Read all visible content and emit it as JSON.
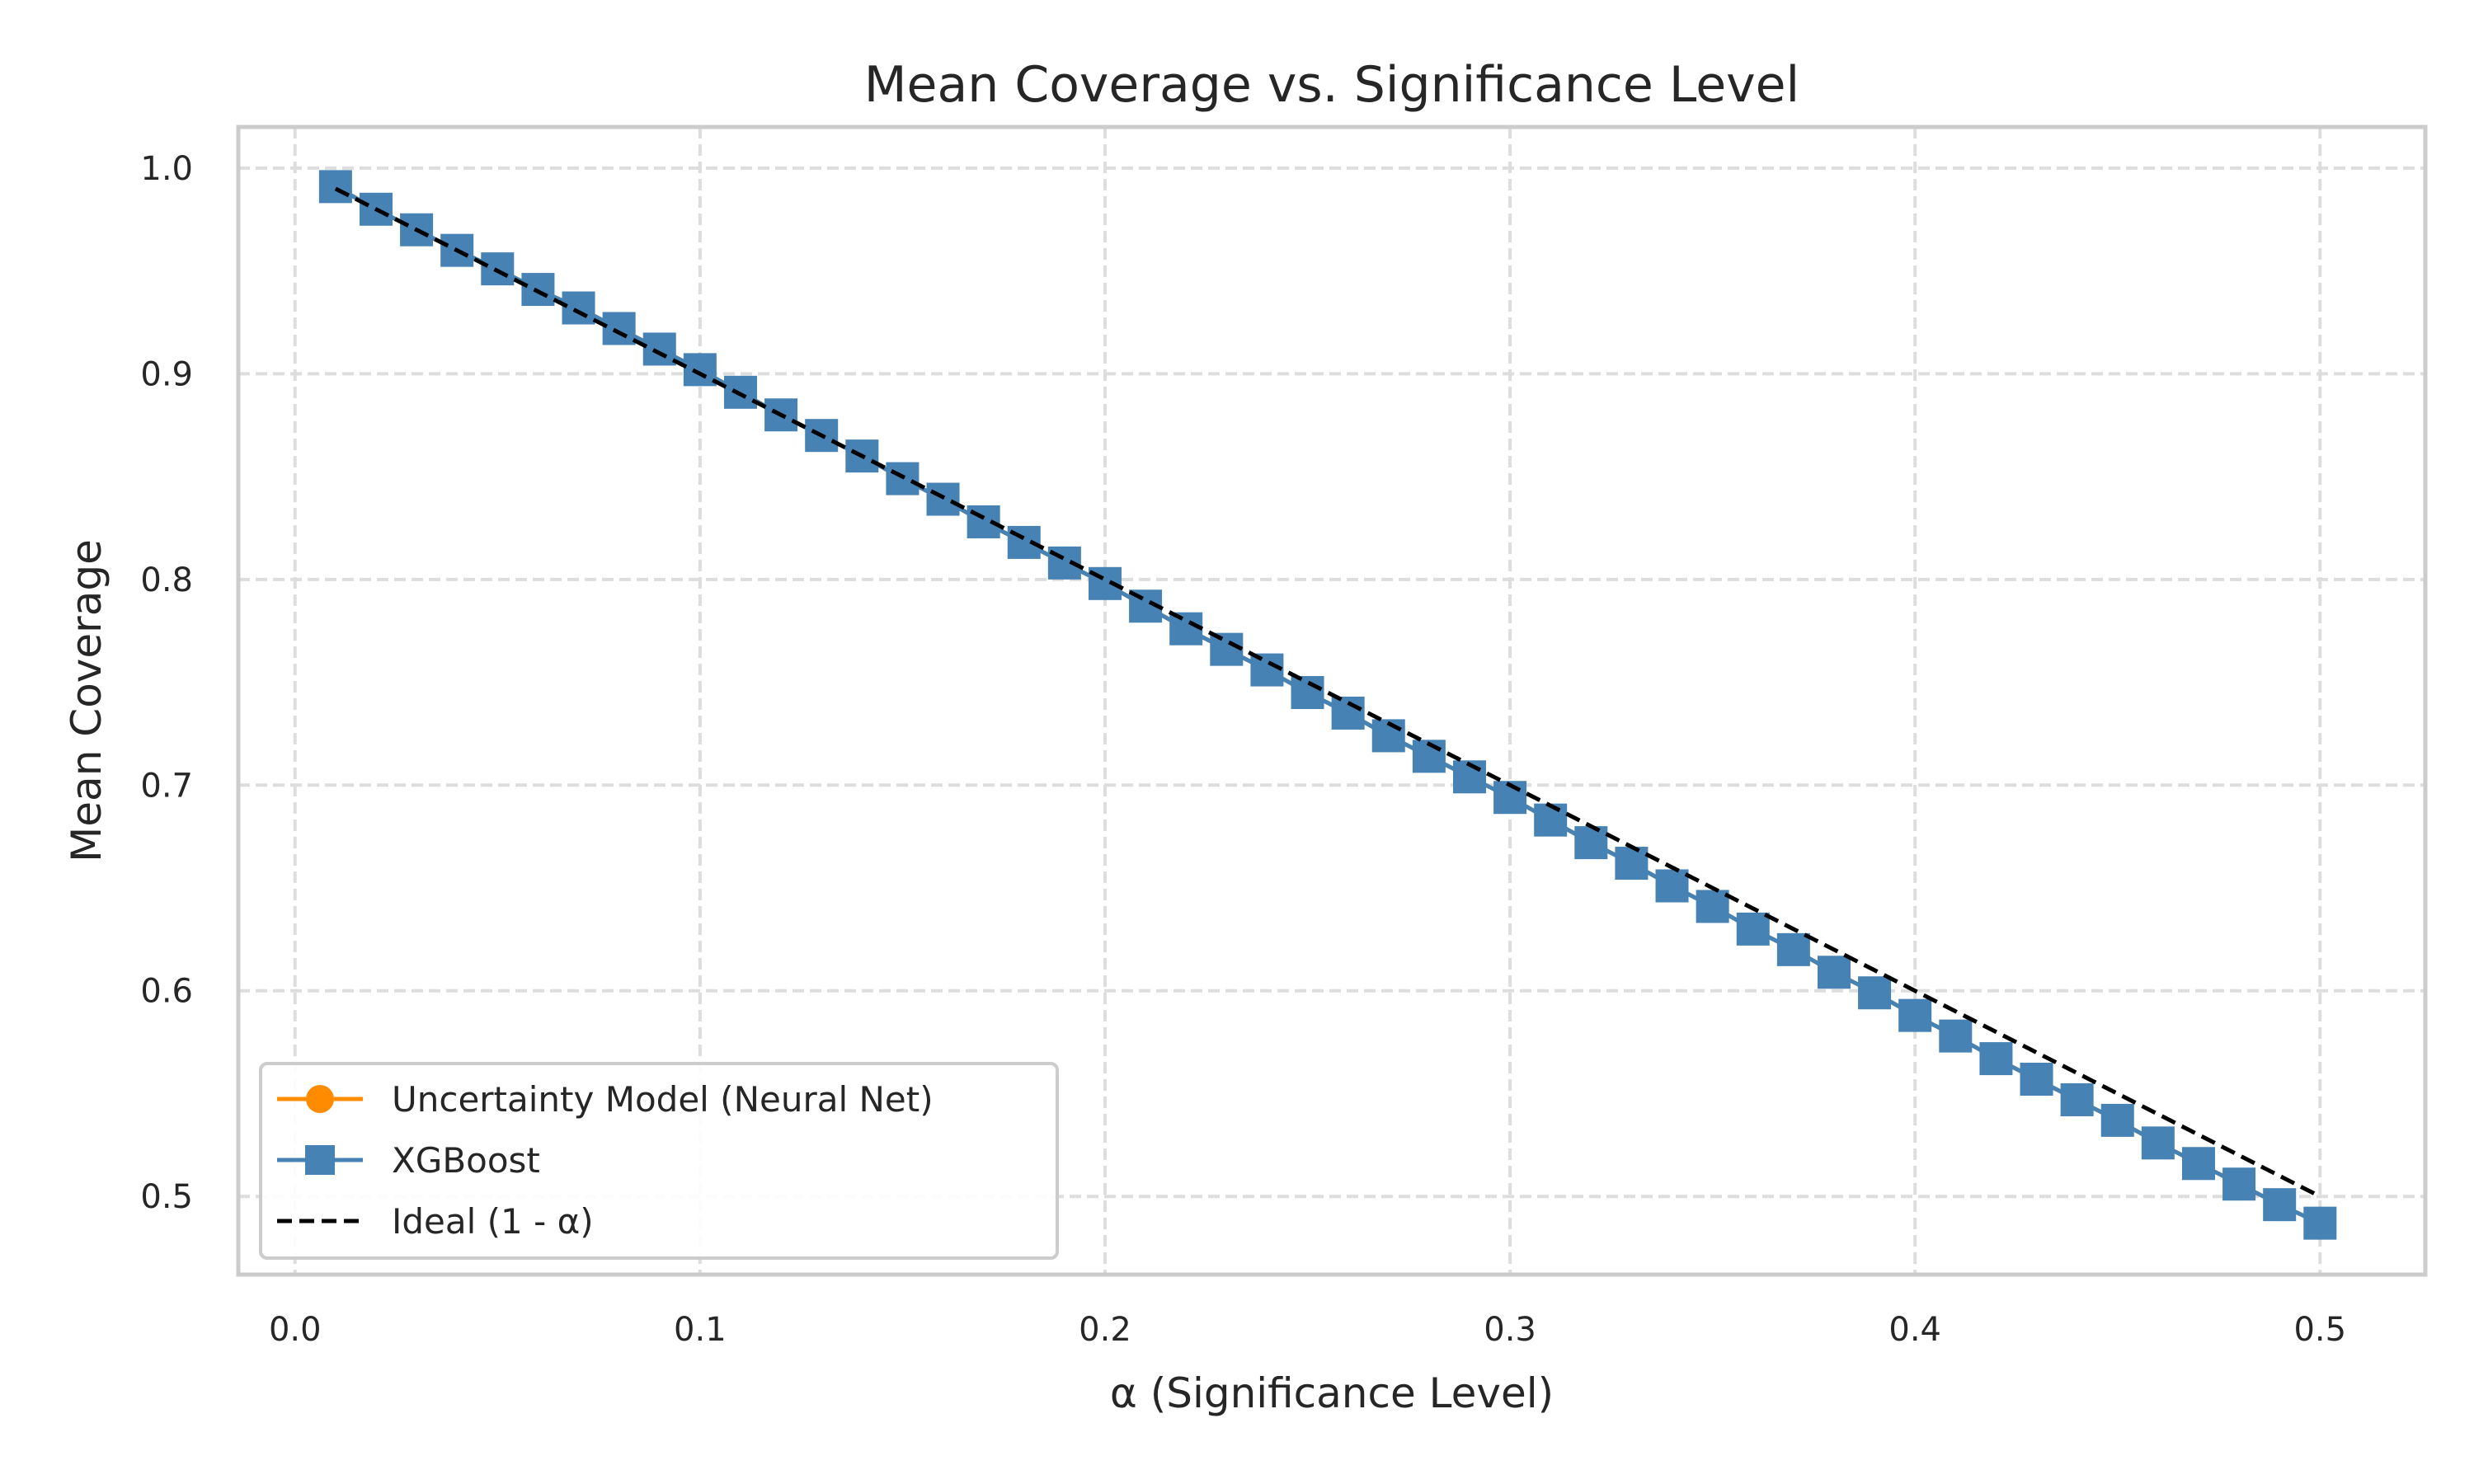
{
  "chart_data": {
    "type": "line",
    "title": "Mean Coverage vs. Significance Level",
    "xlabel": "α (Significance Level)",
    "ylabel": "Mean Coverage",
    "xlim": [
      -0.014,
      0.526
    ],
    "ylim": [
      0.462,
      1.02
    ],
    "xticks": [
      0.0,
      0.1,
      0.2,
      0.3,
      0.4,
      0.5
    ],
    "xtick_labels": [
      "0.0",
      "0.1",
      "0.2",
      "0.3",
      "0.4",
      "0.5"
    ],
    "yticks": [
      0.5,
      0.6,
      0.7,
      0.8,
      0.9,
      1.0
    ],
    "ytick_labels": [
      "0.5",
      "0.6",
      "0.7",
      "0.8",
      "0.9",
      "1.0"
    ],
    "grid": true,
    "legend_position": "lower-left",
    "x": [
      0.01,
      0.02,
      0.03,
      0.04,
      0.05,
      0.06,
      0.07,
      0.08,
      0.09,
      0.1,
      0.11,
      0.12,
      0.13,
      0.14,
      0.15,
      0.16,
      0.17,
      0.18,
      0.19,
      0.2,
      0.21,
      0.22,
      0.23,
      0.24,
      0.25,
      0.26,
      0.27,
      0.28,
      0.29,
      0.3,
      0.31,
      0.32,
      0.33,
      0.34,
      0.35,
      0.36,
      0.37,
      0.38,
      0.39,
      0.4,
      0.41,
      0.42,
      0.43,
      0.44,
      0.45,
      0.46,
      0.47,
      0.48,
      0.49,
      0.5
    ],
    "series": [
      {
        "name": "Uncertainty Model (Neural Net)",
        "color": "#ff8c00",
        "marker": "circle",
        "values": [
          0.991,
          0.98,
          0.97,
          0.96,
          0.951,
          0.941,
          0.932,
          0.922,
          0.912,
          0.902,
          0.891,
          0.88,
          0.87,
          0.86,
          0.849,
          0.839,
          0.828,
          0.818,
          0.808,
          0.798,
          0.787,
          0.776,
          0.766,
          0.756,
          0.745,
          0.735,
          0.724,
          0.714,
          0.704,
          0.694,
          0.683,
          0.672,
          0.662,
          0.651,
          0.641,
          0.63,
          0.62,
          0.609,
          0.599,
          0.588,
          0.578,
          0.567,
          0.557,
          0.547,
          0.537,
          0.526,
          0.516,
          0.506,
          0.496,
          0.487
        ]
      },
      {
        "name": "XGBoost",
        "color": "#4682b4",
        "marker": "square",
        "values": [
          0.991,
          0.98,
          0.97,
          0.96,
          0.951,
          0.941,
          0.932,
          0.922,
          0.912,
          0.902,
          0.891,
          0.88,
          0.87,
          0.86,
          0.849,
          0.839,
          0.828,
          0.818,
          0.808,
          0.798,
          0.787,
          0.776,
          0.766,
          0.756,
          0.745,
          0.735,
          0.724,
          0.714,
          0.704,
          0.694,
          0.683,
          0.672,
          0.662,
          0.651,
          0.641,
          0.63,
          0.62,
          0.609,
          0.599,
          0.588,
          0.578,
          0.567,
          0.557,
          0.547,
          0.537,
          0.526,
          0.516,
          0.506,
          0.496,
          0.487
        ]
      }
    ],
    "ideal": {
      "name": "Ideal (1 - α)",
      "color": "#000000",
      "x": [
        0.01,
        0.5
      ],
      "values": [
        0.99,
        0.5
      ]
    }
  }
}
